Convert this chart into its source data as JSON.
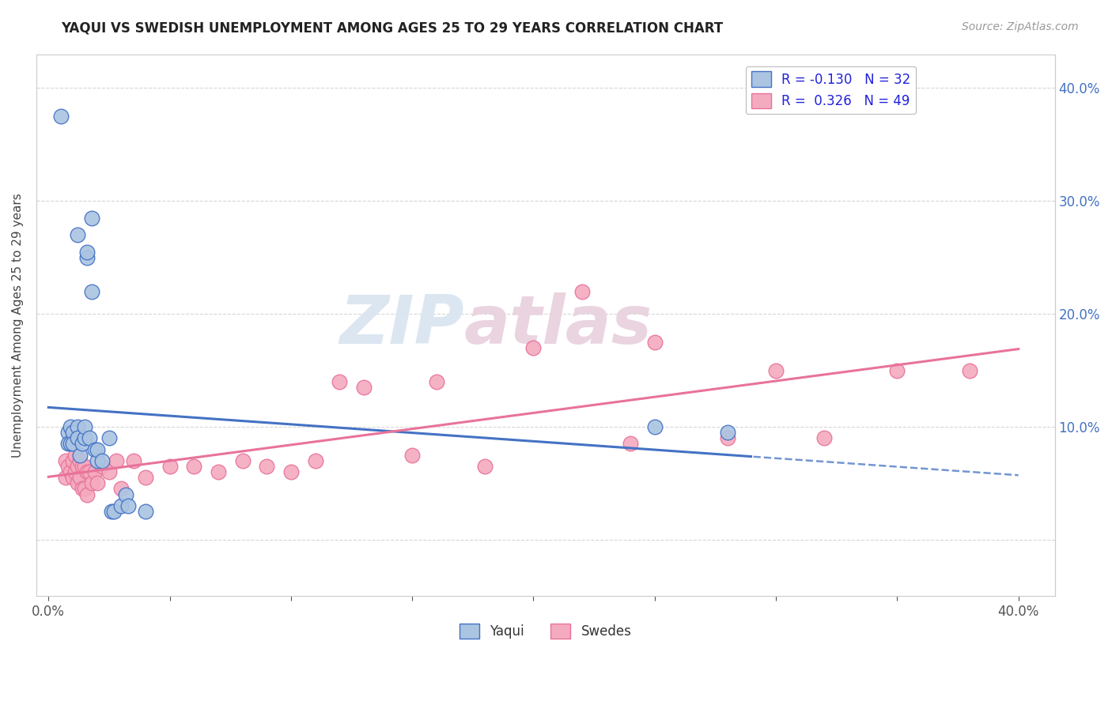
{
  "title": "YAQUI VS SWEDISH UNEMPLOYMENT AMONG AGES 25 TO 29 YEARS CORRELATION CHART",
  "source": "Source: ZipAtlas.com",
  "ylabel": "Unemployment Among Ages 25 to 29 years",
  "xlim": [
    -0.005,
    0.415
  ],
  "ylim": [
    -0.05,
    0.43
  ],
  "xticks": [
    0.0,
    0.05,
    0.1,
    0.15,
    0.2,
    0.25,
    0.3,
    0.35,
    0.4
  ],
  "yticks": [
    0.0,
    0.1,
    0.2,
    0.3,
    0.4
  ],
  "xticklabels": [
    "0.0%",
    "",
    "",
    "",
    "",
    "",
    "",
    "",
    "40.0%"
  ],
  "right_yticklabels": [
    "",
    "10.0%",
    "20.0%",
    "30.0%",
    "40.0%"
  ],
  "yaqui_color": "#aac4e2",
  "swedes_color": "#f4aabf",
  "yaqui_line_color": "#4472c4",
  "swedes_line_color": "#e8739a",
  "legend_yaqui_R": "-0.130",
  "legend_yaqui_N": "32",
  "legend_swedes_R": "0.326",
  "legend_swedes_N": "49",
  "watermark_zip": "ZIP",
  "watermark_atlas": "atlas",
  "yaqui_x": [
    0.005,
    0.012,
    0.018,
    0.008,
    0.008,
    0.009,
    0.009,
    0.01,
    0.01,
    0.012,
    0.012,
    0.013,
    0.014,
    0.015,
    0.015,
    0.016,
    0.016,
    0.017,
    0.018,
    0.019,
    0.02,
    0.02,
    0.022,
    0.025,
    0.026,
    0.027,
    0.03,
    0.032,
    0.033,
    0.04,
    0.25,
    0.28
  ],
  "yaqui_y": [
    0.375,
    0.27,
    0.285,
    0.095,
    0.085,
    0.1,
    0.085,
    0.095,
    0.085,
    0.1,
    0.09,
    0.075,
    0.085,
    0.09,
    0.1,
    0.25,
    0.255,
    0.09,
    0.22,
    0.08,
    0.07,
    0.08,
    0.07,
    0.09,
    0.025,
    0.025,
    0.03,
    0.04,
    0.03,
    0.025,
    0.1,
    0.095
  ],
  "swedes_x": [
    0.007,
    0.007,
    0.008,
    0.009,
    0.01,
    0.01,
    0.011,
    0.011,
    0.012,
    0.012,
    0.013,
    0.013,
    0.014,
    0.014,
    0.015,
    0.015,
    0.016,
    0.016,
    0.017,
    0.018,
    0.019,
    0.02,
    0.022,
    0.025,
    0.028,
    0.03,
    0.035,
    0.04,
    0.05,
    0.06,
    0.07,
    0.08,
    0.09,
    0.1,
    0.11,
    0.12,
    0.13,
    0.15,
    0.16,
    0.18,
    0.2,
    0.22,
    0.24,
    0.25,
    0.28,
    0.3,
    0.32,
    0.35,
    0.38
  ],
  "swedes_y": [
    0.07,
    0.055,
    0.065,
    0.06,
    0.07,
    0.055,
    0.075,
    0.06,
    0.065,
    0.05,
    0.07,
    0.055,
    0.065,
    0.045,
    0.065,
    0.045,
    0.06,
    0.04,
    0.06,
    0.05,
    0.06,
    0.05,
    0.065,
    0.06,
    0.07,
    0.045,
    0.07,
    0.055,
    0.065,
    0.065,
    0.06,
    0.07,
    0.065,
    0.06,
    0.07,
    0.14,
    0.135,
    0.075,
    0.14,
    0.065,
    0.17,
    0.22,
    0.085,
    0.175,
    0.09,
    0.15,
    0.09,
    0.15,
    0.15
  ]
}
